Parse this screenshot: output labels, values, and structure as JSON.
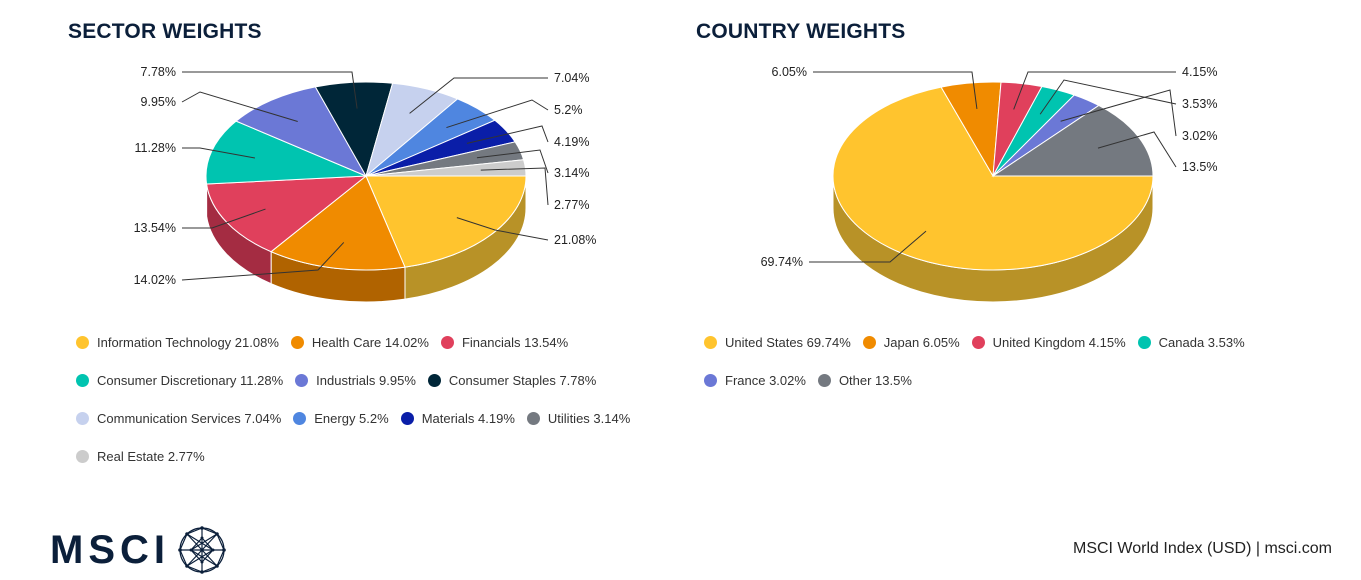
{
  "sector": {
    "title": "SECTOR WEIGHTS",
    "chart_data": {
      "type": "pie",
      "title": "SECTOR WEIGHTS",
      "labels": [
        "Information Technology",
        "Health Care",
        "Financials",
        "Consumer Discretionary",
        "Industrials",
        "Consumer Staples",
        "Communication Services",
        "Energy",
        "Materials",
        "Utilities",
        "Real Estate"
      ],
      "values": [
        21.08,
        14.02,
        13.54,
        11.28,
        9.95,
        7.78,
        7.04,
        5.2,
        4.19,
        3.14,
        2.77
      ],
      "value_labels": [
        "21.08%",
        "14.02%",
        "13.54%",
        "11.28%",
        "9.95%",
        "7.78%",
        "7.04%",
        "5.2%",
        "4.19%",
        "3.14%",
        "2.77%"
      ],
      "legend_text": [
        "Information Technology 21.08%",
        "Health Care 14.02%",
        "Financials 13.54%",
        "Consumer Discretionary 11.28%",
        "Industrials 9.95%",
        "Consumer Staples 7.78%",
        "Communication Services 7.04%",
        "Energy 5.2%",
        "Materials 4.19%",
        "Utilities 3.14%",
        "Real Estate 2.77%"
      ],
      "colors": [
        "#ffc42e",
        "#f08b00",
        "#e0405c",
        "#00c4b0",
        "#6b78d6",
        "#002638",
        "#c6d1ee",
        "#4f86e0",
        "#0a1ea8",
        "#747980",
        "#cccccc"
      ],
      "side_colors": [
        "#b89227",
        "#b06300",
        "#a42c42",
        "#009183",
        "#4f57a0",
        "#001a28",
        "#9098b0",
        "#3863a6",
        "#07157a",
        "#55595e",
        "#999999"
      ],
      "legend_placement": "bottom",
      "style": "3d"
    }
  },
  "country": {
    "title": "COUNTRY WEIGHTS",
    "chart_data": {
      "type": "pie",
      "title": "COUNTRY WEIGHTS",
      "labels": [
        "United States",
        "Japan",
        "United Kingdom",
        "Canada",
        "France",
        "Other"
      ],
      "values": [
        69.74,
        6.05,
        4.15,
        3.53,
        3.02,
        13.5
      ],
      "value_labels": [
        "69.74%",
        "6.05%",
        "4.15%",
        "3.53%",
        "3.02%",
        "13.5%"
      ],
      "legend_text": [
        "United States 69.74%",
        "Japan 6.05%",
        "United Kingdom 4.15%",
        "Canada 3.53%",
        "France 3.02%",
        "Other 13.5%"
      ],
      "colors": [
        "#ffc42e",
        "#f08b00",
        "#e0405c",
        "#00c4b0",
        "#6b78d6",
        "#747980"
      ],
      "side_colors": [
        "#b89227",
        "#b06300",
        "#a42c42",
        "#009183",
        "#4f57a0",
        "#55595e"
      ],
      "legend_placement": "bottom",
      "style": "3d"
    }
  },
  "footer": {
    "logo_text": "MSCI",
    "caption": "MSCI World Index (USD) | msci.com",
    "logo_color": "#0b1f3a"
  }
}
